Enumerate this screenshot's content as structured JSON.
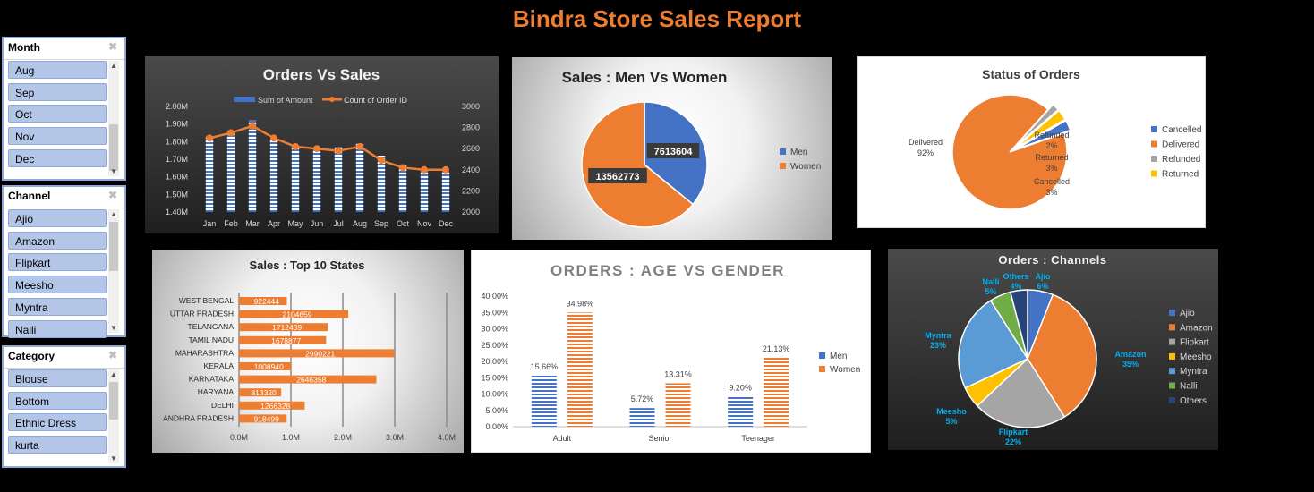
{
  "report_title": "Bindra Store Sales Report",
  "slicers": [
    {
      "title": "Month",
      "items": [
        "Aug",
        "Sep",
        "Oct",
        "Nov",
        "Dec"
      ]
    },
    {
      "title": "Channel",
      "items": [
        "Ajio",
        "Amazon",
        "Flipkart",
        "Meesho",
        "Myntra",
        "Nalli"
      ]
    },
    {
      "title": "Category",
      "items": [
        "Blouse",
        "Bottom",
        "Ethnic Dress",
        "kurta"
      ]
    }
  ],
  "chart_data": [
    {
      "type": "bar",
      "title": "Orders Vs Sales",
      "categories": [
        "Jan",
        "Feb",
        "Mar",
        "Apr",
        "May",
        "Jun",
        "Jul",
        "Aug",
        "Sep",
        "Oct",
        "Nov",
        "Dec"
      ],
      "series": [
        {
          "name": "Sum of Amount",
          "axis": "left",
          "kind": "bar",
          "values": [
            1.83,
            1.86,
            1.92,
            1.81,
            1.77,
            1.76,
            1.77,
            1.79,
            1.72,
            1.67,
            1.64,
            1.63
          ]
        },
        {
          "name": "Count of Order ID",
          "axis": "right",
          "kind": "line",
          "values": [
            2700,
            2750,
            2815,
            2700,
            2620,
            2600,
            2580,
            2620,
            2490,
            2420,
            2400,
            2400
          ]
        }
      ],
      "y_ticks": [
        "2.00M",
        "1.90M",
        "1.80M",
        "1.70M",
        "1.60M",
        "1.50M",
        "1.40M"
      ],
      "y2_ticks": [
        "3000",
        "2800",
        "2600",
        "2400",
        "2200",
        "2000"
      ],
      "ylim": [
        1.4,
        2.0
      ],
      "y2lim": [
        2000,
        3000
      ],
      "colors": {
        "bar": "#4472c4",
        "line": "#ed7d31"
      },
      "legend": "top"
    },
    {
      "type": "pie",
      "title": "Sales : Men Vs Women",
      "categories": [
        "Men",
        "Women"
      ],
      "values": [
        7613604,
        13562773
      ],
      "labels": [
        "7613604",
        "13562773"
      ],
      "colors": [
        "#4472c4",
        "#ed7d31"
      ],
      "legend": "right"
    },
    {
      "type": "pie",
      "title": "Status of Orders",
      "categories": [
        "Cancelled",
        "Delivered",
        "Refunded",
        "Returned"
      ],
      "values": [
        3,
        92,
        2,
        3
      ],
      "labels": [
        [
          "Cancelled",
          "3%"
        ],
        [
          "Delivered",
          "92%"
        ],
        [
          "Refunded",
          "2%"
        ],
        [
          "Returned",
          "3%"
        ]
      ],
      "colors": [
        "#4472c4",
        "#ed7d31",
        "#a5a5a5",
        "#ffc000"
      ],
      "legend": "right"
    },
    {
      "type": "bar",
      "orientation": "horizontal",
      "title": "Sales : Top 10 States",
      "categories": [
        "WEST BENGAL",
        "UTTAR PRADESH",
        "TELANGANA",
        "TAMIL NADU",
        "MAHARASHTRA",
        "KERALA",
        "KARNATAKA",
        "HARYANA",
        "DELHI",
        "ANDHRA PRADESH"
      ],
      "values": [
        922444,
        2104659,
        1712439,
        1678877,
        2990221,
        1008940,
        2646358,
        813320,
        1266328,
        918499
      ],
      "x_ticks": [
        "0.0M",
        "1.0M",
        "2.0M",
        "3.0M",
        "4.0M"
      ],
      "xlim": [
        0,
        4000000
      ],
      "color": "#ed7d31"
    },
    {
      "type": "bar",
      "title": "ORDERS : AGE VS GENDER",
      "categories": [
        "Adult",
        "Senior",
        "Teenager"
      ],
      "series": [
        {
          "name": "Men",
          "values": [
            15.66,
            5.72,
            9.2
          ],
          "labels": [
            "15.66%",
            "5.72%",
            "9.20%"
          ]
        },
        {
          "name": "Women",
          "values": [
            34.98,
            13.31,
            21.13
          ],
          "labels": [
            "34.98%",
            "13.31%",
            "21.13%"
          ]
        }
      ],
      "y_ticks": [
        "40.00%",
        "35.00%",
        "30.00%",
        "25.00%",
        "20.00%",
        "15.00%",
        "10.00%",
        "5.00%",
        "0.00%"
      ],
      "ylim": [
        0,
        40
      ],
      "colors": [
        "#4472c4",
        "#ed7d31"
      ],
      "legend": "right"
    },
    {
      "type": "pie",
      "title": "Orders : Channels",
      "categories": [
        "Ajio",
        "Amazon",
        "Flipkart",
        "Meesho",
        "Myntra",
        "Nalli",
        "Others"
      ],
      "values": [
        6,
        35,
        22,
        5,
        23,
        5,
        4
      ],
      "labels": [
        "6%",
        "35%",
        "22%",
        "5%",
        "23%",
        "5%",
        "4%"
      ],
      "colors": [
        "#4472c4",
        "#ed7d31",
        "#a5a5a5",
        "#ffc000",
        "#5b9bd5",
        "#70ad47",
        "#264478"
      ],
      "label_color": "#00b0f0",
      "legend": "right"
    }
  ]
}
